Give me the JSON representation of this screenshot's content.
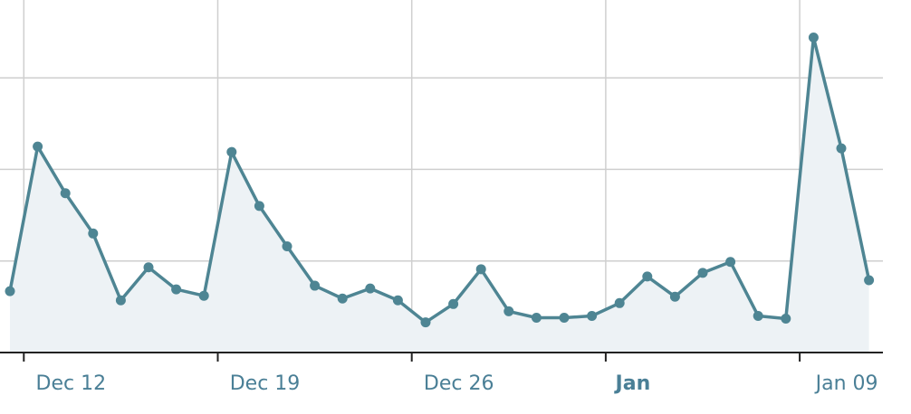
{
  "chart_data": {
    "type": "line",
    "x": [
      "Dec 11",
      "Dec 12",
      "Dec 13",
      "Dec 14",
      "Dec 15",
      "Dec 16",
      "Dec 17",
      "Dec 18",
      "Dec 19",
      "Dec 20",
      "Dec 21",
      "Dec 22",
      "Dec 23",
      "Dec 24",
      "Dec 25",
      "Dec 26",
      "Dec 27",
      "Dec 28",
      "Dec 29",
      "Dec 30",
      "Dec 31",
      "Jan 01",
      "Jan 02",
      "Jan 03",
      "Jan 04",
      "Jan 05",
      "Jan 06",
      "Jan 07",
      "Jan 08",
      "Jan 09",
      "Jan 10",
      "Jan 11"
    ],
    "series": [
      {
        "color": "#4e8593",
        "values": [
          0.67,
          2.25,
          1.74,
          1.3,
          0.57,
          0.93,
          0.69,
          0.62,
          2.19,
          1.6,
          1.16,
          0.73,
          0.59,
          0.7,
          0.57,
          0.33,
          0.53,
          0.91,
          0.45,
          0.38,
          0.38,
          0.4,
          0.54,
          0.83,
          0.61,
          0.87,
          0.99,
          0.4,
          0.37,
          3.44,
          2.23,
          0.79
        ]
      }
    ],
    "ylim": [
      0,
      3.85
    ],
    "yticks": [
      1,
      2,
      3
    ],
    "xticks": [
      "Dec 12",
      "Dec 19",
      "Dec 26",
      {
        "value": "Jan 02",
        "label": "Jan"
      },
      "Jan 09"
    ],
    "grid": true,
    "fill": "#edf2f5"
  }
}
